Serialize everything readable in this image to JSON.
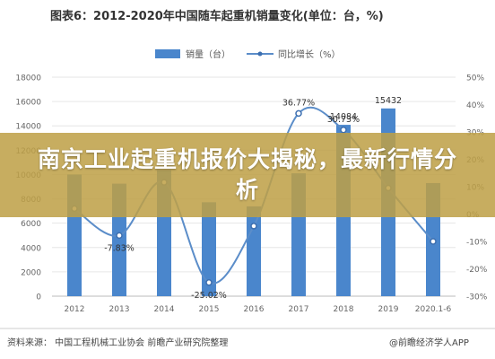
{
  "chart_data": {
    "type": "bar",
    "title": "图表6：2012-2020年中国随车起重机销量变化(单位：台，%)",
    "categories": [
      "2012",
      "2013",
      "2014",
      "2015",
      "2016",
      "2017",
      "2018",
      "2019",
      "2020.1-6"
    ],
    "series": [
      {
        "name": "销量（台）",
        "type": "bar",
        "axis": "left",
        "values": [
          10000,
          9250,
          10350,
          7720,
          7380,
          10100,
          14084,
          15432,
          9300
        ]
      },
      {
        "name": "同比增长（%）",
        "type": "line",
        "axis": "right",
        "values": [
          2,
          -7.83,
          11.6,
          -25.02,
          -4.4,
          36.77,
          30.73,
          9.5,
          -10
        ]
      }
    ],
    "data_labels": {
      "bar": {
        "6": "14084",
        "7": "15432"
      },
      "line": {
        "1": "-7.83%",
        "3": "-25.02%",
        "5": "36.77%",
        "6": "30.73%"
      }
    },
    "ylim_left": [
      0,
      18000
    ],
    "yticks_left": [
      "0",
      "2000",
      "4000",
      "6000",
      "8000",
      "10000",
      "12000",
      "14000",
      "16000",
      "18000"
    ],
    "ylim_right": [
      -30,
      50
    ],
    "yticks_right": [
      "-30%",
      "-20%",
      "-10%",
      "0%",
      "10%",
      "20%",
      "30%",
      "40%",
      "50%"
    ],
    "legend_position": "top",
    "grid": true,
    "colors": {
      "bar": "#4a86cc",
      "line": "#5b8dc9",
      "line_marker": "#3d6fb0"
    }
  },
  "banner": {
    "text": "南京工业起重机报价大揭秘，最新行情分析"
  },
  "footer": {
    "source": "资料来源：  中国工程机械工业协会  前瞻产业研究院整理",
    "brand": "@前瞻经济学人APP"
  }
}
